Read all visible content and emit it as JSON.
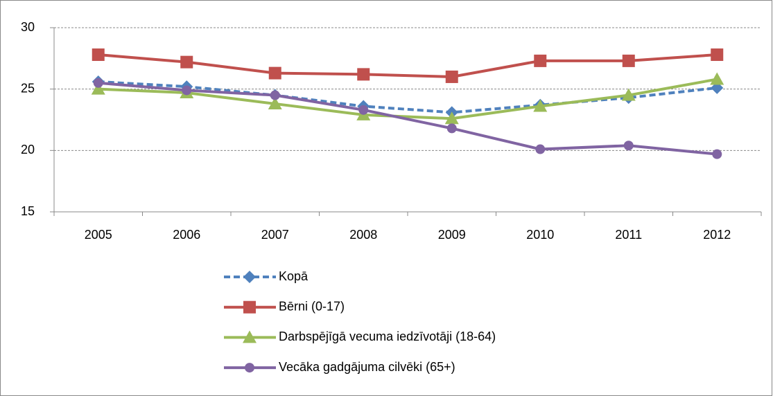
{
  "chart_data": {
    "type": "line",
    "categories": [
      "2005",
      "2006",
      "2007",
      "2008",
      "2009",
      "2010",
      "2011",
      "2012"
    ],
    "series": [
      {
        "name": "Kopā",
        "color": "#4f81bd",
        "linestyle": "dashed",
        "marker": "diamond",
        "values": [
          25.6,
          25.2,
          24.5,
          23.6,
          23.1,
          23.7,
          24.3,
          25.1
        ]
      },
      {
        "name": "Bērni (0-17)",
        "color": "#c0504d",
        "linestyle": "solid",
        "marker": "square",
        "values": [
          27.8,
          27.2,
          26.3,
          26.2,
          26.0,
          27.3,
          27.3,
          27.8
        ]
      },
      {
        "name": "Darbspējīgā vecuma iedzīvotāji (18-64)",
        "color": "#9bbb59",
        "linestyle": "solid",
        "marker": "triangle",
        "values": [
          25.0,
          24.7,
          23.8,
          22.9,
          22.6,
          23.6,
          24.5,
          25.8
        ]
      },
      {
        "name": "Vecāka gadgājuma cilvēki (65+)",
        "color": "#8064a2",
        "linestyle": "solid",
        "marker": "circle",
        "values": [
          25.5,
          24.9,
          24.5,
          23.3,
          21.8,
          20.1,
          20.4,
          19.7
        ]
      }
    ],
    "ylim": [
      15,
      30
    ],
    "yticks": [
      15,
      20,
      25,
      30
    ],
    "grid": true,
    "legend": "bottom"
  }
}
